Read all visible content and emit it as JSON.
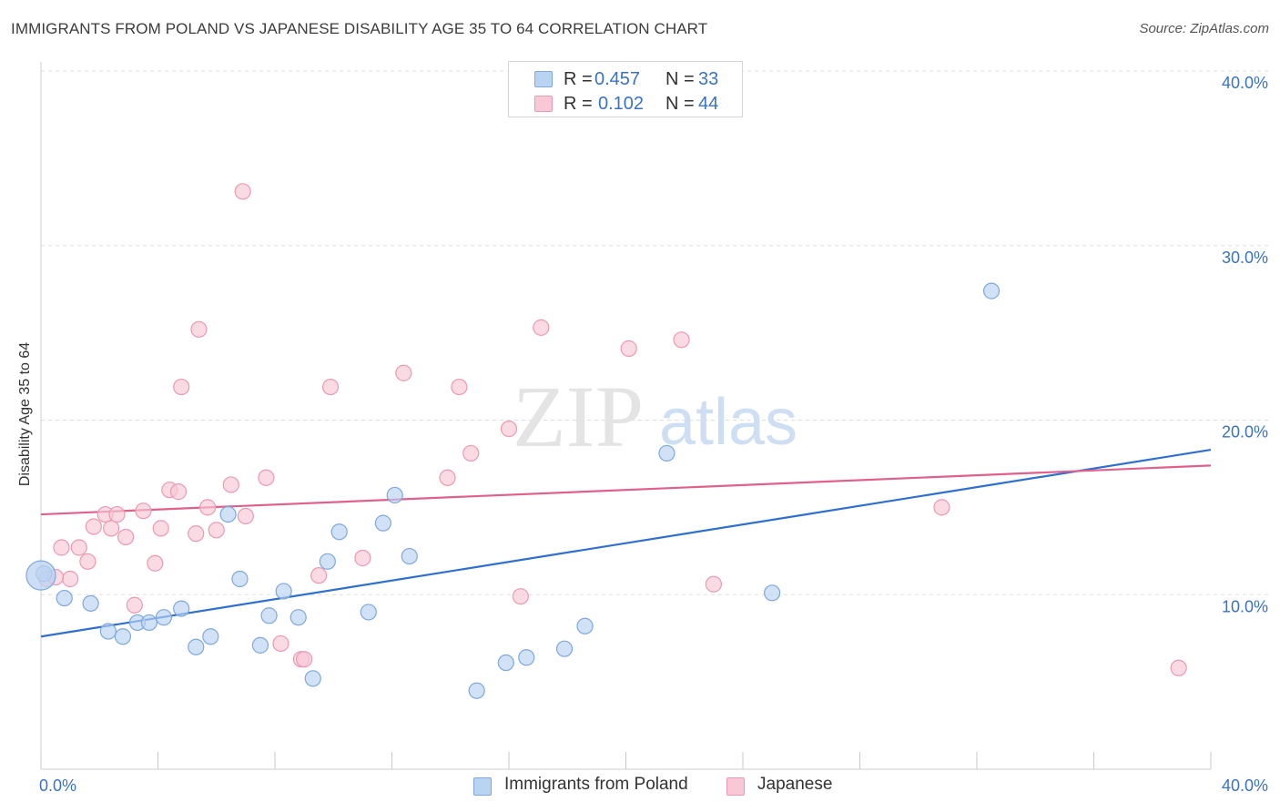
{
  "title": "IMMIGRANTS FROM POLAND VS JAPANESE DISABILITY AGE 35 TO 64 CORRELATION CHART",
  "source": "Source: ZipAtlas.com",
  "watermark": {
    "zip": "ZIP",
    "atlas": "atlas"
  },
  "legend": {
    "rows": [
      {
        "r_label": "R =",
        "r_value": "0.457",
        "n_label": "N =",
        "n_value": "33"
      },
      {
        "r_label": "R =",
        "r_value": "0.102",
        "n_label": "N =",
        "n_value": "44"
      }
    ]
  },
  "bottom_legend": {
    "series1": "Immigrants from Poland",
    "series2": "Japanese"
  },
  "chart_data": {
    "type": "scatter",
    "title": "IMMIGRANTS FROM POLAND VS JAPANESE DISABILITY AGE 35 TO 64 CORRELATION CHART",
    "xlabel": "",
    "ylabel": "Disability Age 35 to 64",
    "xlim": [
      0,
      40
    ],
    "ylim": [
      0,
      40
    ],
    "x_tick_labels": [
      "0.0%",
      "40.0%"
    ],
    "y_ticks": [
      10,
      20,
      30,
      40
    ],
    "y_tick_labels": [
      "10.0%",
      "20.0%",
      "30.0%",
      "40.0%"
    ],
    "colors": {
      "series1_fill": "#b9d3f2",
      "series1_stroke": "#7fa8dc",
      "series1_line": "#2f6fd0",
      "series2_fill": "#f8c8d6",
      "series2_stroke": "#eb99b3",
      "series2_line": "#e0608c",
      "axis_text": "#3a72c8",
      "grid": "#dddddd"
    },
    "series": [
      {
        "name": "Immigrants from Poland",
        "R": 0.457,
        "N": 33,
        "trend": {
          "x": [
            0,
            40
          ],
          "y": [
            7.6,
            18.3
          ]
        },
        "points": [
          [
            0.1,
            11.2
          ],
          [
            0.8,
            9.8
          ],
          [
            1.7,
            9.5
          ],
          [
            2.3,
            7.9
          ],
          [
            2.8,
            7.6
          ],
          [
            3.3,
            8.4
          ],
          [
            3.7,
            8.4
          ],
          [
            4.2,
            8.7
          ],
          [
            4.8,
            9.2
          ],
          [
            5.3,
            7.0
          ],
          [
            5.8,
            7.6
          ],
          [
            6.4,
            14.6
          ],
          [
            6.8,
            10.9
          ],
          [
            7.5,
            7.1
          ],
          [
            7.8,
            8.8
          ],
          [
            8.3,
            10.2
          ],
          [
            8.8,
            8.7
          ],
          [
            9.3,
            5.2
          ],
          [
            9.8,
            11.9
          ],
          [
            10.2,
            13.6
          ],
          [
            11.2,
            9.0
          ],
          [
            11.7,
            14.1
          ],
          [
            12.1,
            15.7
          ],
          [
            12.6,
            12.2
          ],
          [
            14.9,
            4.5
          ],
          [
            15.9,
            6.1
          ],
          [
            16.6,
            6.4
          ],
          [
            17.9,
            6.9
          ],
          [
            18.6,
            8.2
          ],
          [
            21.4,
            18.1
          ],
          [
            25.0,
            10.1
          ],
          [
            32.5,
            27.4
          ],
          [
            0.0,
            11.1
          ]
        ]
      },
      {
        "name": "Japanese",
        "R": 0.102,
        "N": 44,
        "trend": {
          "x": [
            0,
            40
          ],
          "y": [
            14.6,
            17.4
          ]
        },
        "points": [
          [
            0.2,
            10.9
          ],
          [
            0.7,
            12.7
          ],
          [
            1.0,
            10.9
          ],
          [
            1.3,
            12.7
          ],
          [
            1.6,
            11.9
          ],
          [
            1.8,
            13.9
          ],
          [
            2.2,
            14.6
          ],
          [
            2.4,
            13.8
          ],
          [
            2.6,
            14.6
          ],
          [
            2.9,
            13.3
          ],
          [
            3.2,
            9.4
          ],
          [
            3.5,
            14.8
          ],
          [
            3.9,
            11.8
          ],
          [
            4.1,
            13.8
          ],
          [
            4.4,
            16.0
          ],
          [
            4.7,
            15.9
          ],
          [
            4.8,
            21.9
          ],
          [
            5.3,
            13.5
          ],
          [
            5.4,
            25.2
          ],
          [
            5.7,
            15.0
          ],
          [
            6.0,
            13.7
          ],
          [
            6.5,
            16.3
          ],
          [
            6.9,
            33.1
          ],
          [
            7.0,
            14.5
          ],
          [
            7.7,
            16.7
          ],
          [
            8.2,
            7.2
          ],
          [
            8.9,
            6.3
          ],
          [
            9.0,
            6.3
          ],
          [
            9.5,
            11.1
          ],
          [
            9.9,
            21.9
          ],
          [
            11.0,
            12.1
          ],
          [
            12.4,
            22.7
          ],
          [
            13.9,
            16.7
          ],
          [
            14.3,
            21.9
          ],
          [
            14.7,
            18.1
          ],
          [
            16.0,
            19.5
          ],
          [
            16.4,
            9.9
          ],
          [
            17.1,
            25.3
          ],
          [
            20.1,
            24.1
          ],
          [
            21.9,
            24.6
          ],
          [
            23.0,
            10.6
          ],
          [
            30.8,
            15.0
          ],
          [
            38.9,
            5.8
          ],
          [
            0.5,
            11.0
          ]
        ]
      }
    ]
  }
}
